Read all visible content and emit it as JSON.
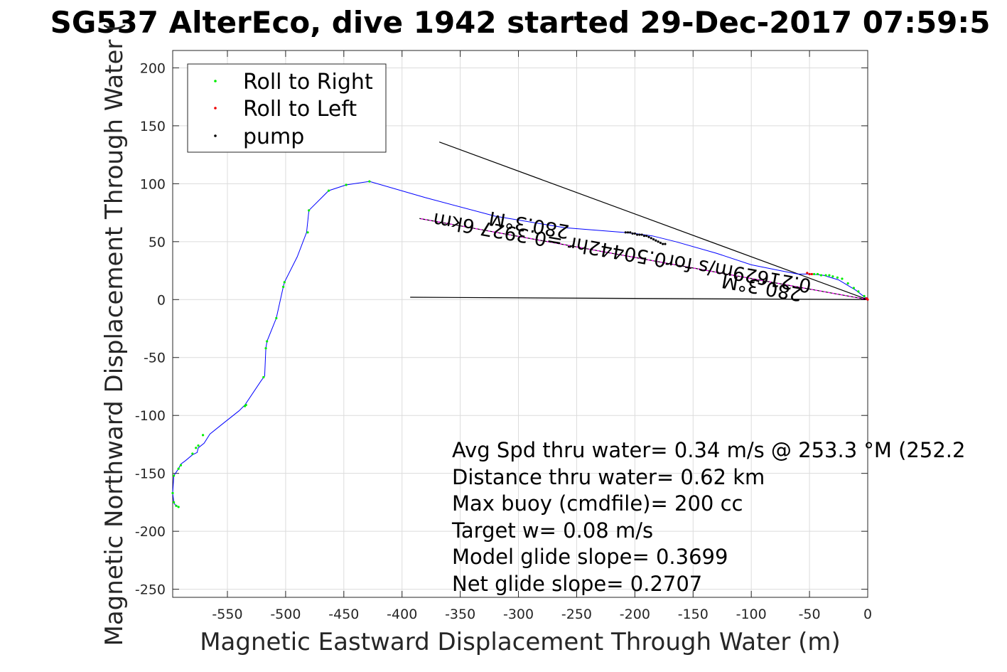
{
  "chart_data": {
    "type": "scatter",
    "title": "SG537 AlterEco, dive 1942 started 29-Dec-2017 07:59:5",
    "xlabel": "Magnetic Eastward Displacement Through Water (m)",
    "ylabel": "Magnetic Northward Displacement Through Water (",
    "xlim": [
      -597,
      0
    ],
    "ylim": [
      -257,
      215
    ],
    "x_ticks": [
      -550,
      -500,
      -450,
      -400,
      -350,
      -300,
      -250,
      -200,
      -150,
      -100,
      -50,
      0
    ],
    "y_ticks": [
      200,
      150,
      100,
      50,
      0,
      -50,
      -100,
      -150,
      -200,
      -250
    ],
    "x_tick_labels": [
      "-550",
      "-500",
      "-450",
      "-400",
      "-350",
      "-300",
      "-250",
      "-200",
      "-150",
      "-100",
      "-50",
      "0"
    ],
    "y_tick_labels": [
      "200",
      "150",
      "100",
      "50",
      "0",
      "-50",
      "-100",
      "-150",
      "-200",
      "-250"
    ],
    "grid": true,
    "legend_position": "top-left",
    "legend": [
      {
        "label": "Roll to Right",
        "color": "#00ee00"
      },
      {
        "label": "Roll to Left",
        "color": "#ee0000"
      },
      {
        "label": "pump",
        "color": "#000000"
      }
    ],
    "series": [
      {
        "name": "track",
        "color": "#0000ff",
        "style": "line",
        "x": [
          0,
          -10,
          -25,
          -38,
          -48,
          -60,
          -75,
          -100,
          -130,
          -165,
          -185,
          -200,
          -210,
          -260,
          -320,
          -380,
          -428,
          -448,
          -463,
          -480,
          -482,
          -490,
          -501,
          -502,
          -508,
          -516,
          -517,
          -518,
          -521,
          -535,
          -540,
          -555,
          -565,
          -570,
          -575,
          -576,
          -580,
          -586,
          -590,
          -592,
          -596,
          -597,
          -596,
          -595,
          -592
        ],
        "y": [
          0,
          8,
          17,
          21,
          22,
          22,
          25,
          30,
          40,
          50,
          55,
          57,
          58,
          62,
          72,
          88,
          102,
          99,
          94,
          77,
          58,
          37,
          15,
          11,
          -16,
          -36,
          -42,
          -66,
          -70,
          -91,
          -96,
          -108,
          -116,
          -124,
          -128,
          -132,
          -134,
          -139,
          -142,
          -146,
          -152,
          -167,
          -175,
          -177,
          -179
        ]
      },
      {
        "name": "Roll to Right",
        "color": "#00ee00",
        "style": "points",
        "x": [
          -3,
          -8,
          -12,
          -17,
          -22,
          -26,
          -30,
          -33,
          -36,
          -40,
          -43,
          -46,
          -428,
          -448,
          -463,
          -480,
          -481,
          -501,
          -502,
          -508,
          -516,
          -517,
          -519,
          -534,
          -535,
          -571,
          -575,
          -577,
          -580,
          -590,
          -592,
          -596,
          -597,
          -596,
          -594,
          -592
        ],
        "y": [
          3,
          7,
          10,
          14,
          18,
          19,
          20,
          21,
          21,
          21,
          22,
          22,
          102,
          99,
          94,
          77,
          58,
          15,
          11,
          -16,
          -36,
          -42,
          -67,
          -91,
          -92,
          -117,
          -126,
          -128,
          -133,
          -143,
          -146,
          -152,
          -167,
          -175,
          -178,
          -179
        ]
      },
      {
        "name": "Roll to Left",
        "color": "#ee0000",
        "style": "points",
        "x": [
          0,
          -1,
          -50,
          -52,
          -48
        ],
        "y": [
          0,
          1,
          22,
          23,
          22
        ]
      },
      {
        "name": "pump",
        "color": "#000000",
        "style": "points",
        "x": [
          -208,
          -206,
          -204,
          -202,
          -200,
          -198,
          -196,
          -194,
          -192,
          -190,
          -188,
          -186,
          -184,
          -182,
          -180,
          -178,
          -176,
          -174
        ],
        "y": [
          58,
          58,
          58,
          57,
          57,
          56,
          56,
          56,
          55,
          55,
          54,
          53,
          52,
          51,
          50,
          49,
          48,
          48
        ]
      },
      {
        "name": "current",
        "color": "#ff00ff",
        "style": "dashed",
        "x": [
          0,
          -385
        ],
        "y": [
          0,
          70
        ]
      }
    ],
    "annotation_lines": [
      {
        "color": "#000000",
        "x": [
          0,
          -368
        ],
        "y": [
          0,
          136
        ]
      },
      {
        "color": "#000000",
        "x": [
          0,
          -393
        ],
        "y": [
          0,
          2
        ]
      },
      {
        "color": "#000000",
        "x": [
          0,
          -385
        ],
        "y": [
          0,
          70
        ]
      }
    ],
    "annotations": [
      {
        "text": "280.3°M",
        "x": -290,
        "y": 70,
        "rotation": 190
      },
      {
        "text": "0.21629m/s for0.50442hr =0.3927 6km",
        "x": -210,
        "y": 46,
        "rotation": 190
      },
      {
        "text": "280.3°M",
        "x": -90,
        "y": 16,
        "rotation": 190
      }
    ],
    "stats": [
      "Avg Spd thru water=  0.34 m/s @ 253.3 °M (252.2",
      "Distance thru water=  0.62 km",
      "Max buoy (cmdfile)= 200 cc",
      "Target w= 0.08 m/s",
      "Model glide slope= 0.3699",
      "Net glide slope= 0.2707"
    ]
  }
}
